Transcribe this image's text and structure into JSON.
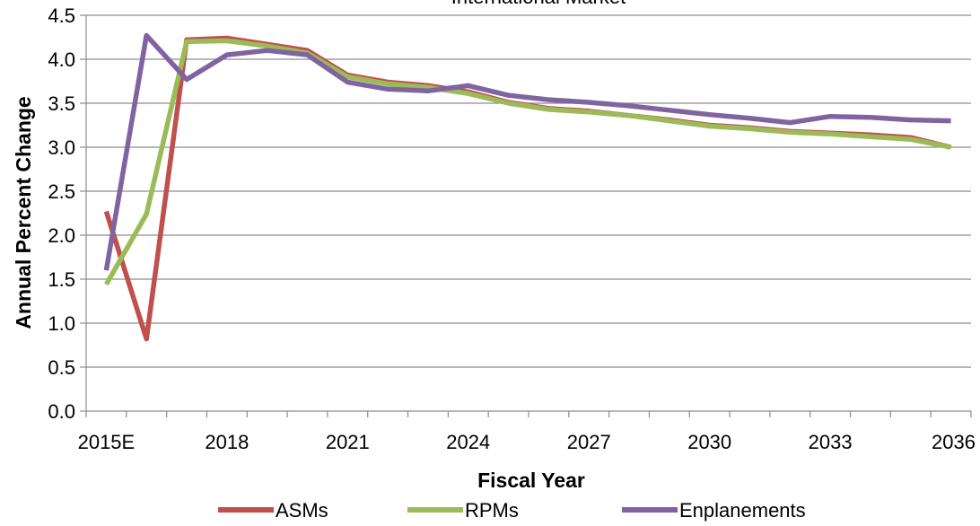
{
  "chart_data": {
    "type": "line",
    "title": "International Market",
    "xlabel": "Fiscal Year",
    "ylabel": "Annual Percent Change",
    "ylim": [
      0,
      4.5
    ],
    "yticks": [
      "0.0",
      "0.5",
      "1.0",
      "1.5",
      "2.0",
      "2.5",
      "3.0",
      "3.5",
      "4.0",
      "4.5"
    ],
    "x": [
      "2015E",
      "2016",
      "2017",
      "2018",
      "2019",
      "2020",
      "2021",
      "2022",
      "2023",
      "2024",
      "2025",
      "2026",
      "2027",
      "2028",
      "2029",
      "2030",
      "2031",
      "2032",
      "2033",
      "2034",
      "2035",
      "2036"
    ],
    "xtick_labels": [
      "2015E",
      "2018",
      "2021",
      "2024",
      "2027",
      "2030",
      "2033",
      "2036"
    ],
    "xtick_indices": [
      0,
      3,
      6,
      9,
      12,
      15,
      18,
      21
    ],
    "grid": true,
    "legend_position": "bottom",
    "series": [
      {
        "name": "ASMs",
        "color": "#c0504d",
        "values": [
          2.27,
          0.82,
          4.22,
          4.24,
          4.17,
          4.1,
          3.82,
          3.74,
          3.7,
          3.63,
          3.51,
          3.44,
          3.41,
          3.36,
          3.31,
          3.25,
          3.22,
          3.18,
          3.16,
          3.14,
          3.11,
          3.0
        ]
      },
      {
        "name": "RPMs",
        "color": "#9bbb59",
        "values": [
          1.44,
          2.24,
          4.2,
          4.21,
          4.15,
          4.07,
          3.8,
          3.72,
          3.68,
          3.61,
          3.5,
          3.43,
          3.4,
          3.36,
          3.3,
          3.24,
          3.21,
          3.17,
          3.15,
          3.12,
          3.09,
          3.0
        ]
      },
      {
        "name": "Enplanements",
        "color": "#8064a2",
        "values": [
          1.6,
          4.27,
          3.77,
          4.05,
          4.1,
          4.05,
          3.74,
          3.66,
          3.64,
          3.7,
          3.59,
          3.54,
          3.51,
          3.47,
          3.42,
          3.37,
          3.33,
          3.28,
          3.35,
          3.34,
          3.31,
          3.3
        ]
      }
    ]
  }
}
